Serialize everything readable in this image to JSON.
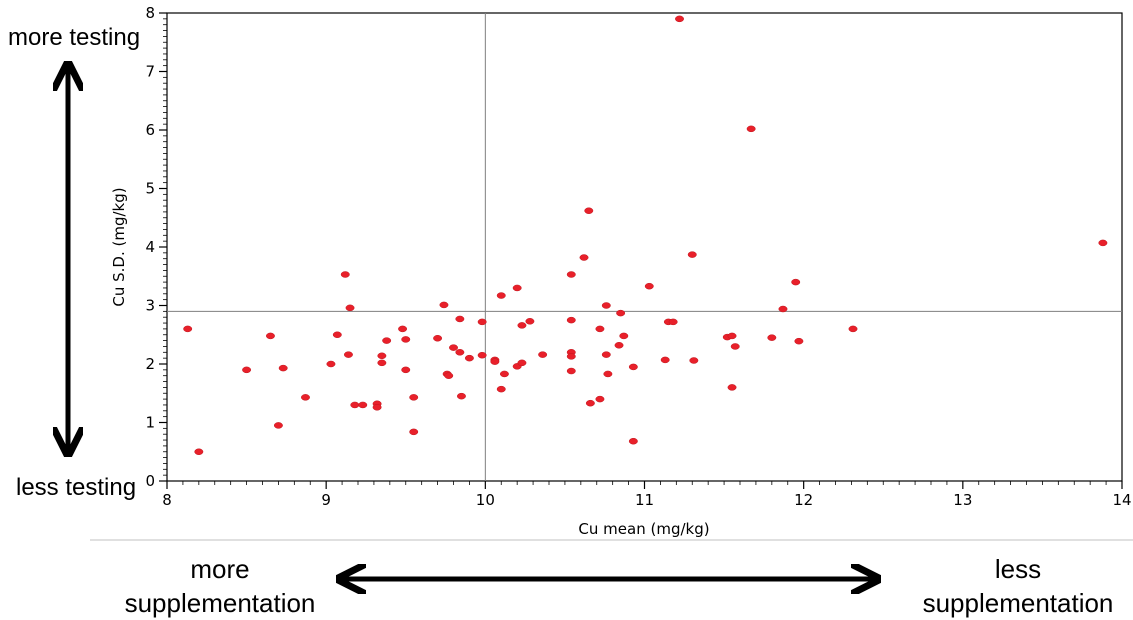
{
  "annotations": {
    "top_left": "more testing",
    "bottom_left": "less testing",
    "bottom_left_x": "more supplementation",
    "bottom_right_x": "less supplementation"
  },
  "colors": {
    "points": "#e8202a",
    "axes": "#000000",
    "reference_lines": "#7f7f7f",
    "divider": "#c0c0c0"
  },
  "chart_data": {
    "type": "scatter",
    "xlabel": "Cu mean (mg/kg)",
    "ylabel": "Cu S.D. (mg/kg)",
    "xlim": [
      8,
      14
    ],
    "ylim": [
      0,
      8
    ],
    "xticks": [
      8,
      9,
      10,
      11,
      12,
      13,
      14
    ],
    "yticks": [
      0,
      1,
      2,
      3,
      4,
      5,
      6,
      7,
      8
    ],
    "reference_lines": {
      "x": 10,
      "y": 2.9
    },
    "grid": false,
    "points": [
      [
        8.13,
        2.6
      ],
      [
        8.2,
        0.5
      ],
      [
        8.5,
        1.9
      ],
      [
        8.65,
        2.48
      ],
      [
        8.7,
        0.95
      ],
      [
        8.73,
        1.93
      ],
      [
        8.87,
        1.43
      ],
      [
        9.03,
        2.0
      ],
      [
        9.07,
        2.5
      ],
      [
        9.12,
        3.53
      ],
      [
        9.14,
        2.16
      ],
      [
        9.15,
        2.96
      ],
      [
        9.18,
        1.3
      ],
      [
        9.23,
        1.3
      ],
      [
        9.32,
        1.32
      ],
      [
        9.32,
        1.26
      ],
      [
        9.35,
        2.02
      ],
      [
        9.35,
        2.14
      ],
      [
        9.38,
        2.4
      ],
      [
        9.48,
        2.6
      ],
      [
        9.5,
        2.42
      ],
      [
        9.5,
        1.9
      ],
      [
        9.55,
        1.43
      ],
      [
        9.55,
        0.84
      ],
      [
        9.7,
        2.44
      ],
      [
        9.74,
        3.01
      ],
      [
        9.76,
        1.83
      ],
      [
        9.77,
        1.8
      ],
      [
        9.8,
        2.28
      ],
      [
        9.84,
        2.77
      ],
      [
        9.84,
        2.2
      ],
      [
        9.85,
        1.45
      ],
      [
        9.9,
        2.1
      ],
      [
        9.98,
        2.72
      ],
      [
        9.98,
        2.15
      ],
      [
        10.06,
        2.07
      ],
      [
        10.06,
        2.04
      ],
      [
        10.1,
        3.17
      ],
      [
        10.1,
        1.57
      ],
      [
        10.12,
        1.83
      ],
      [
        10.2,
        1.96
      ],
      [
        10.2,
        3.3
      ],
      [
        10.23,
        2.66
      ],
      [
        10.23,
        2.02
      ],
      [
        10.28,
        2.73
      ],
      [
        10.36,
        2.16
      ],
      [
        10.54,
        3.53
      ],
      [
        10.54,
        2.75
      ],
      [
        10.54,
        2.2
      ],
      [
        10.54,
        2.13
      ],
      [
        10.54,
        1.88
      ],
      [
        10.62,
        3.82
      ],
      [
        10.65,
        4.62
      ],
      [
        10.66,
        1.33
      ],
      [
        10.72,
        2.6
      ],
      [
        10.72,
        1.4
      ],
      [
        10.76,
        3.0
      ],
      [
        10.76,
        2.16
      ],
      [
        10.77,
        1.83
      ],
      [
        10.84,
        2.32
      ],
      [
        10.85,
        2.87
      ],
      [
        10.87,
        2.48
      ],
      [
        10.93,
        1.95
      ],
      [
        10.93,
        0.68
      ],
      [
        11.03,
        3.33
      ],
      [
        11.13,
        2.07
      ],
      [
        11.15,
        2.72
      ],
      [
        11.18,
        2.72
      ],
      [
        11.22,
        7.9
      ],
      [
        11.3,
        3.87
      ],
      [
        11.31,
        2.06
      ],
      [
        11.52,
        2.46
      ],
      [
        11.55,
        2.48
      ],
      [
        11.55,
        1.6
      ],
      [
        11.57,
        2.3
      ],
      [
        11.67,
        6.02
      ],
      [
        11.8,
        2.45
      ],
      [
        11.87,
        2.94
      ],
      [
        11.95,
        3.4
      ],
      [
        11.97,
        2.39
      ],
      [
        12.31,
        2.6
      ],
      [
        13.88,
        4.07
      ]
    ]
  }
}
